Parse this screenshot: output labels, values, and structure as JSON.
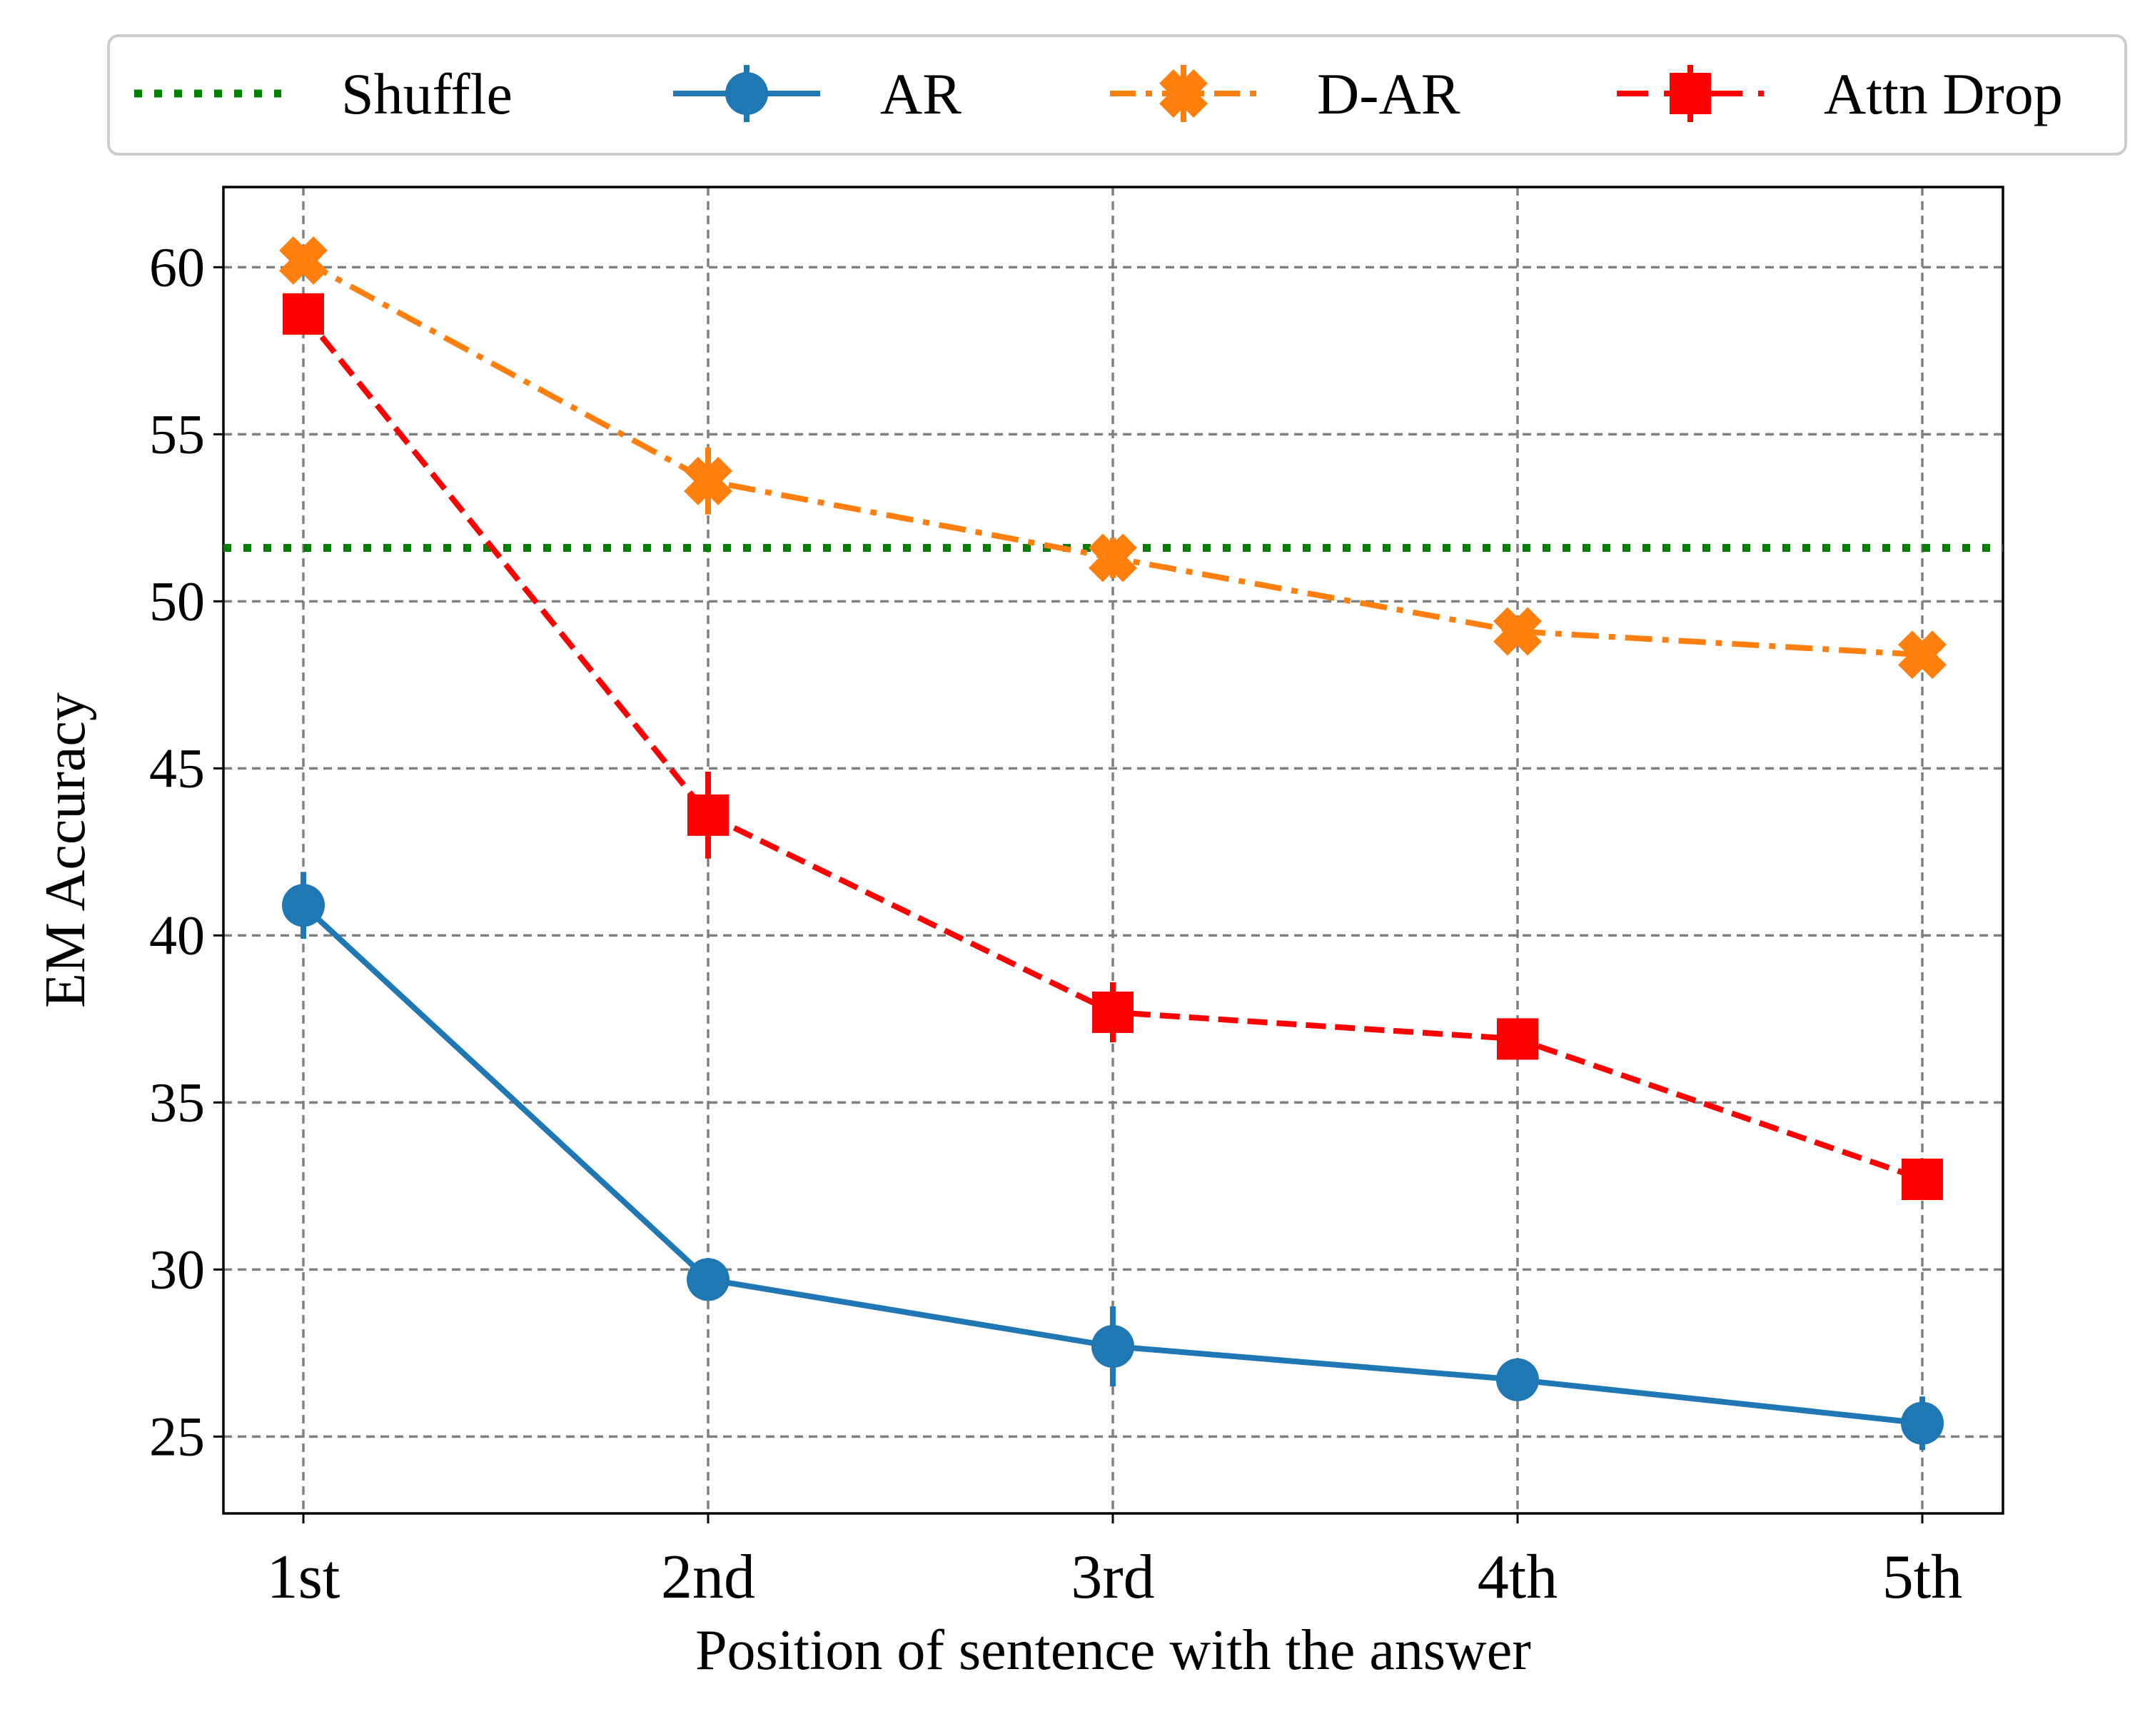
{
  "chart_data": {
    "type": "line",
    "title": "",
    "xlabel": "Position of sentence with the answer",
    "ylabel": "EM Accuracy",
    "categories": [
      "1st",
      "2nd",
      "3rd",
      "4th",
      "5th"
    ],
    "ylim": [
      22.7,
      62.4
    ],
    "yticks": [
      25,
      30,
      35,
      40,
      45,
      50,
      55,
      60
    ],
    "grid": true,
    "legend_position": "top, outside plot, 4 columns",
    "reference_line": {
      "name": "Shuffle",
      "value": 51.6,
      "color": "#008000",
      "style": "dotted"
    },
    "series": [
      {
        "name": "AR",
        "color": "#1f77b4",
        "style": "solid",
        "marker": "circle",
        "values": [
          40.9,
          29.7,
          27.7,
          26.7,
          25.4
        ],
        "errors": [
          1.0,
          0.5,
          1.2,
          0.5,
          0.8
        ]
      },
      {
        "name": "D-AR",
        "color": "#ff7f0e",
        "style": "dashdot",
        "marker": "plus-filled",
        "values": [
          60.2,
          53.6,
          51.3,
          49.1,
          48.4
        ],
        "errors": [
          0.4,
          1.0,
          0.6,
          0.4,
          0.3
        ]
      },
      {
        "name": "Attn Drop",
        "color": "#ff0000",
        "style": "dashed",
        "marker": "square",
        "values": [
          58.6,
          43.6,
          37.7,
          36.9,
          32.7
        ],
        "errors": [
          0.5,
          1.3,
          0.9,
          0.6,
          0.6
        ]
      }
    ]
  }
}
